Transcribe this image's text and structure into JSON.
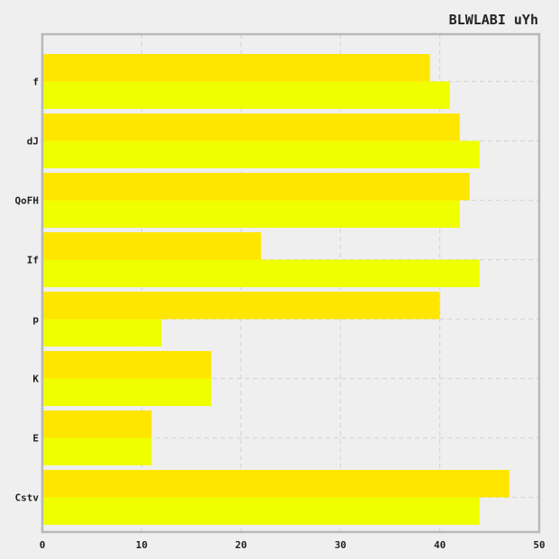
{
  "chart_data": {
    "type": "bar",
    "orientation": "horizontal",
    "title": "BLWLABI uYh",
    "xlabel": "",
    "ylabel": "",
    "categories": [
      "f",
      "dJ",
      "QoFH",
      "If",
      "p",
      "K",
      "E",
      "Cstv"
    ],
    "series": [
      {
        "color": "#ffe600",
        "values": [
          39,
          42,
          43,
          22,
          40,
          17,
          11,
          47
        ]
      },
      {
        "color": "#f0ff00",
        "values": [
          41,
          44,
          42,
          44,
          12,
          17,
          11,
          44
        ]
      }
    ],
    "xlim": [
      0,
      50
    ],
    "xticks": [
      "0",
      "10",
      "20",
      "30",
      "40",
      "50"
    ],
    "grid": true,
    "legend": "none"
  }
}
